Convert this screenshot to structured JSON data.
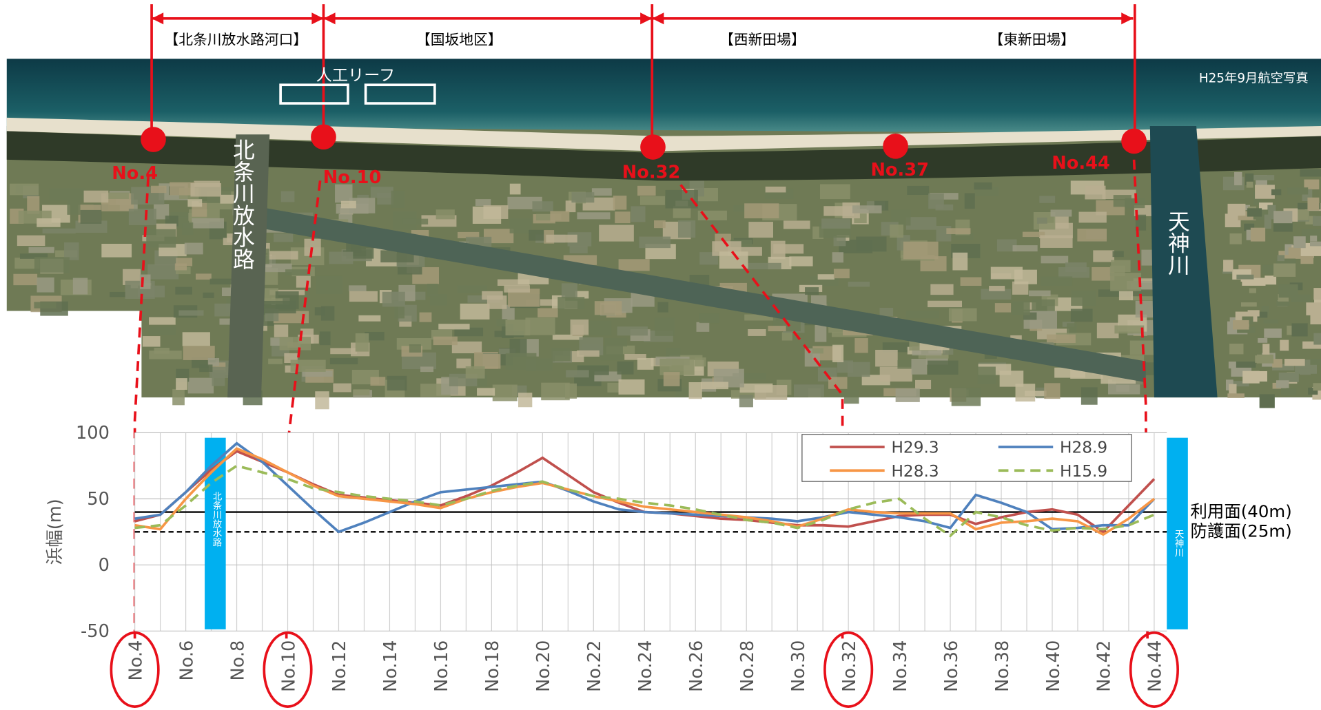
{
  "photo": {
    "caption": "H25年9月航空写真",
    "reef": "人工リーフ",
    "sections": [
      "【北条川放水路河口】",
      "【国坂地区】",
      "【西新田場】",
      "【東新田場】"
    ],
    "points": [
      "No.4",
      "No.10",
      "No.32",
      "No.37",
      "No.44"
    ],
    "rivers": [
      "北条川放水路",
      "天神川"
    ]
  },
  "chart_data": {
    "type": "line",
    "ylabel": "浜幅(m)",
    "categories": [
      "No.4",
      null,
      "No.6",
      null,
      "No.8",
      null,
      "No.10",
      null,
      "No.12",
      null,
      "No.14",
      null,
      "No.16",
      null,
      "No.18",
      null,
      "No.20",
      null,
      "No.22",
      null,
      "No.24",
      null,
      "No.26",
      null,
      "No.28",
      null,
      "No.30",
      null,
      "No.32",
      null,
      "No.34",
      null,
      "No.36",
      null,
      "No.38",
      null,
      "No.40",
      null,
      "No.42",
      null,
      "No.44"
    ],
    "series": [
      {
        "name": "H29.3",
        "color": "#c0504d",
        "dash": false,
        "values": [
          33,
          38,
          55,
          72,
          86,
          78,
          70,
          61,
          53,
          51,
          49,
          47,
          45,
          52,
          60,
          70,
          81,
          68,
          55,
          47,
          40,
          39,
          37,
          35,
          34,
          32,
          30,
          30,
          29,
          33,
          37,
          38,
          38,
          31,
          36,
          40,
          42,
          38,
          25,
          45,
          65
        ]
      },
      {
        "name": "H28.9",
        "color": "#4f81bd",
        "dash": false,
        "values": [
          35,
          38,
          55,
          75,
          92,
          78,
          60,
          42,
          25,
          32,
          40,
          48,
          55,
          57,
          59,
          61,
          63,
          56,
          48,
          42,
          40,
          39,
          38,
          37,
          36,
          35,
          33,
          36,
          40,
          38,
          36,
          33,
          28,
          53,
          47,
          40,
          27,
          28,
          30,
          30,
          50
        ]
      },
      {
        "name": "H28.3",
        "color": "#f79646",
        "dash": false,
        "values": [
          30,
          27,
          50,
          70,
          88,
          80,
          70,
          60,
          52,
          50,
          48,
          46,
          43,
          50,
          55,
          59,
          62,
          57,
          52,
          48,
          44,
          42,
          40,
          38,
          36,
          33,
          29,
          35,
          42,
          40,
          39,
          39,
          39,
          27,
          32,
          33,
          35,
          33,
          23,
          35,
          50
        ]
      },
      {
        "name": "H15.9",
        "color": "#9bbb59",
        "dash": true,
        "values": [
          28,
          30,
          45,
          62,
          75,
          70,
          65,
          58,
          55,
          52,
          50,
          48,
          45,
          50,
          56,
          60,
          63,
          57,
          52,
          50,
          47,
          45,
          42,
          38,
          34,
          32,
          28,
          34,
          42,
          47,
          50,
          35,
          22,
          40,
          36,
          30,
          26,
          28,
          27,
          30,
          38
        ]
      }
    ],
    "ylim": [
      -50,
      100
    ],
    "yticks": [
      -50,
      0,
      50,
      100
    ],
    "grid": true,
    "reference_lines": [
      {
        "label": "利用面(40m)",
        "value": 40,
        "style": "solid"
      },
      {
        "label": "防護面(25m)",
        "value": 25,
        "style": "dashed"
      }
    ]
  }
}
